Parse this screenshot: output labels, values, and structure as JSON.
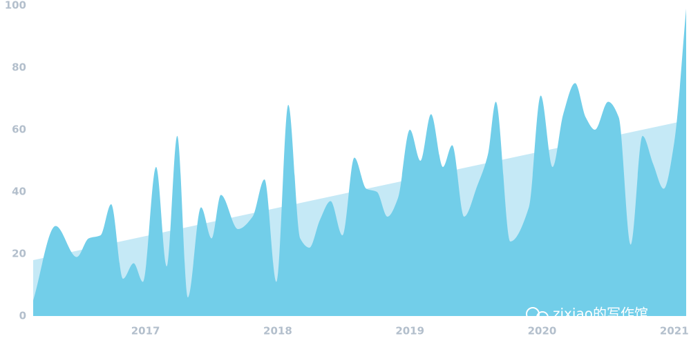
{
  "chart_data": {
    "type": "area",
    "watermark": "zixiao的写作馆",
    "series": [
      {
        "color": "#c5e9f6",
        "x": [
          2016.15,
          2021.09
        ],
        "values": [
          18,
          63
        ]
      },
      {
        "color": "#72cee9",
        "x": [
          2016.15,
          2016.32,
          2016.48,
          2016.57,
          2016.66,
          2016.74,
          2016.83,
          2016.91,
          2016.98,
          2017.08,
          2017.16,
          2017.24,
          2017.32,
          2017.42,
          2017.5,
          2017.57,
          2017.7,
          2017.81,
          2017.9,
          2017.99,
          2018.08,
          2018.17,
          2018.24,
          2018.32,
          2018.4,
          2018.49,
          2018.58,
          2018.67,
          2018.75,
          2018.83,
          2018.91,
          2019.0,
          2019.08,
          2019.16,
          2019.25,
          2019.32,
          2019.41,
          2019.51,
          2019.59,
          2019.65,
          2019.76,
          2019.9,
          2019.99,
          2020.08,
          2020.16,
          2020.25,
          2020.33,
          2020.4,
          2020.5,
          2020.58,
          2020.67,
          2020.76,
          2020.84,
          2020.92,
          2021.0,
          2021.09
        ],
        "values": [
          5,
          29,
          19,
          25,
          26,
          36,
          12,
          17,
          11,
          48,
          16,
          58,
          6,
          35,
          25,
          39,
          28,
          32,
          44,
          11,
          68,
          25,
          22,
          31,
          37,
          26,
          51,
          41,
          40,
          32,
          38,
          60,
          50,
          65,
          48,
          55,
          32,
          42,
          52,
          69,
          24,
          35,
          71,
          48,
          65,
          75,
          64,
          60,
          69,
          64,
          23,
          58,
          49,
          41,
          56,
          99
        ]
      }
    ],
    "xlim": [
      2016.15,
      2021.09
    ],
    "xticks": [
      2017,
      2018,
      2019,
      2020,
      2021
    ],
    "ylim": [
      0,
      100
    ],
    "yticks": [
      0,
      20,
      40,
      60,
      80,
      100
    ]
  }
}
